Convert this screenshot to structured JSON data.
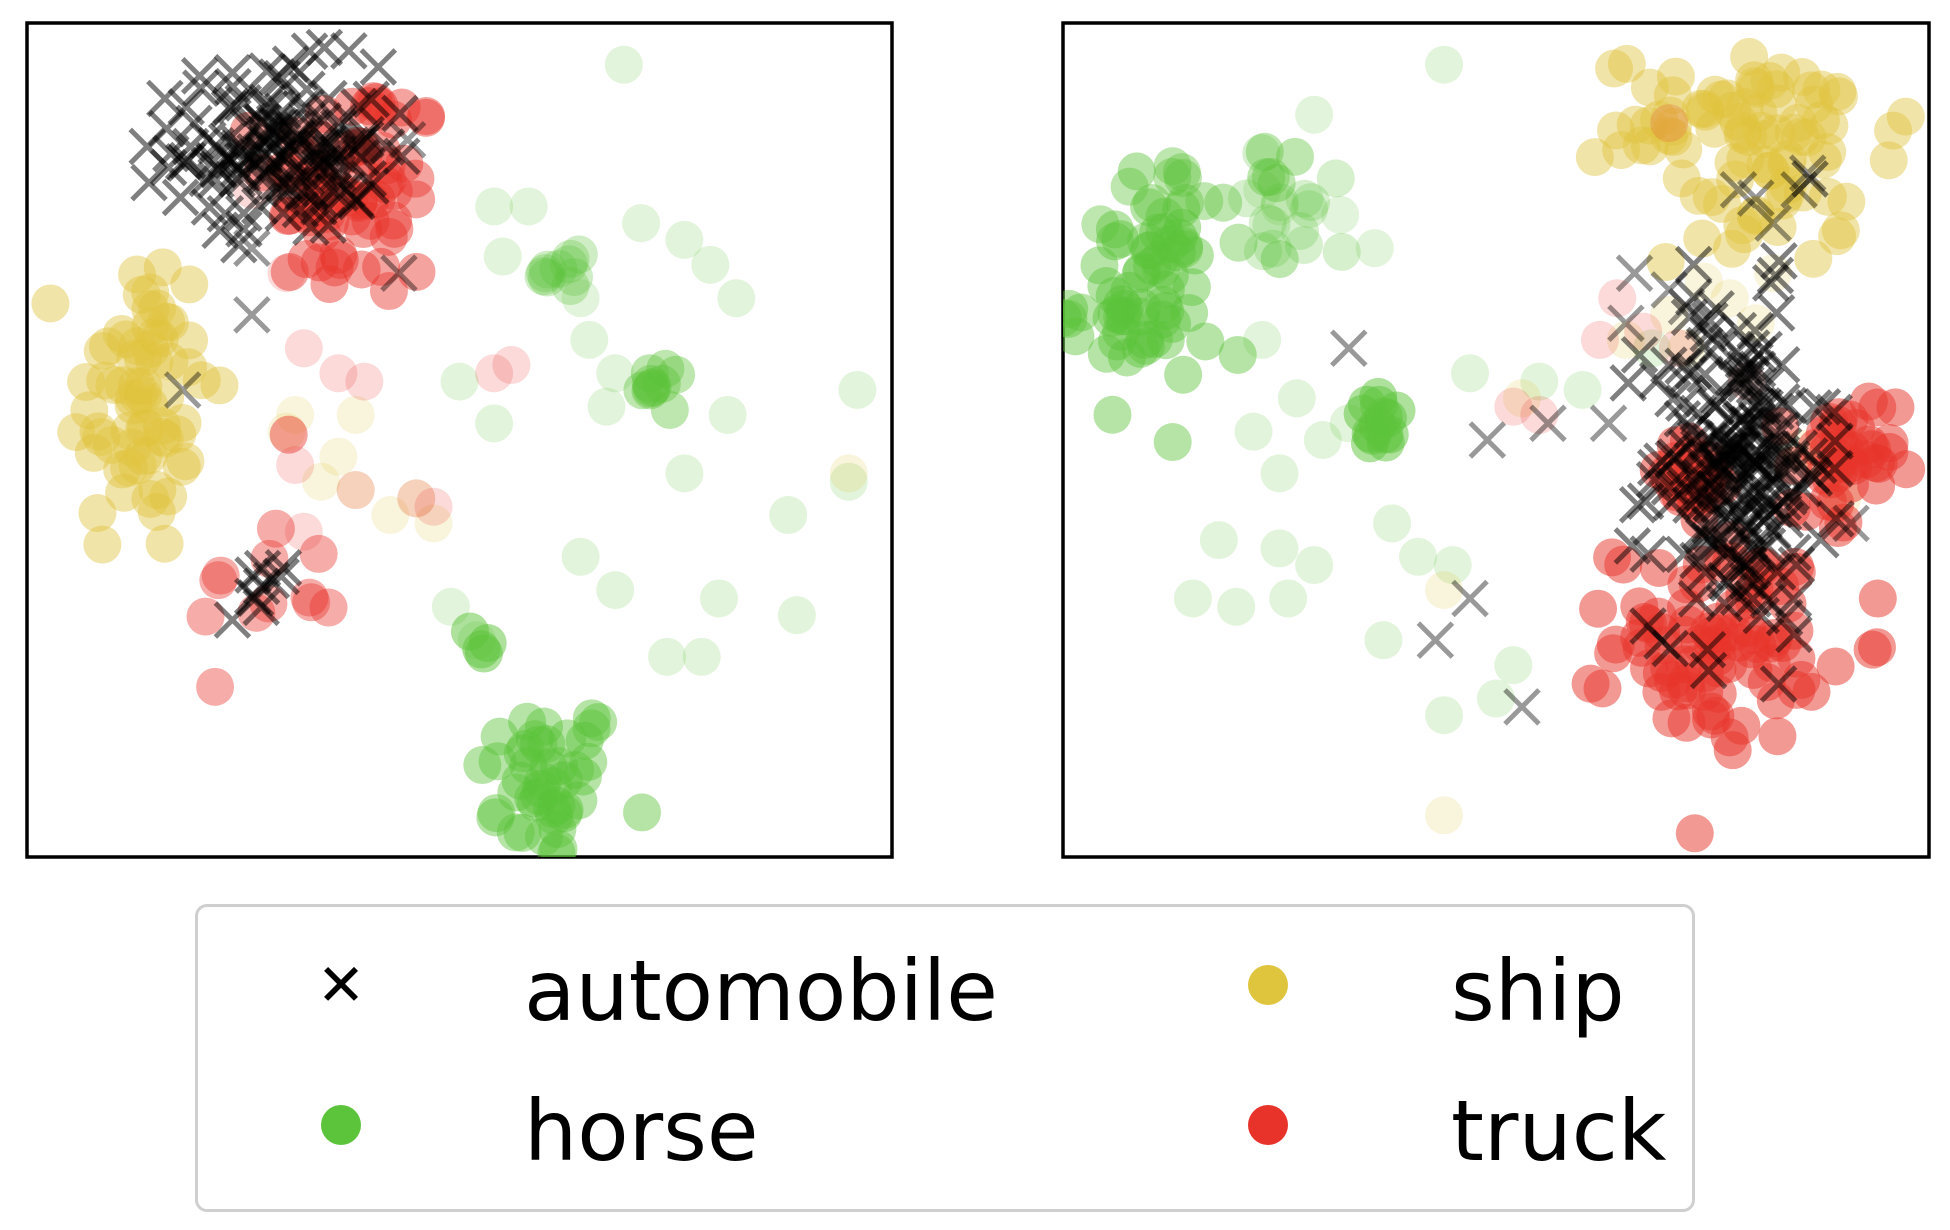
{
  "legend": {
    "automobile": {
      "label": "automobile",
      "marker": "x-marker-icon",
      "color": "#000000"
    },
    "horse": {
      "label": "horse",
      "marker": "dot-marker-icon",
      "color": "#5cc43a"
    },
    "ship": {
      "label": "ship",
      "marker": "dot-marker-icon",
      "color": "#dfc43e"
    },
    "truck": {
      "label": "truck",
      "marker": "dot-marker-icon",
      "color": "#e8332a"
    }
  },
  "chart_data": [
    {
      "type": "scatter",
      "title": "",
      "xlabel": "",
      "ylabel": "",
      "xlim": [
        0,
        100
      ],
      "ylim": [
        0,
        100
      ],
      "grid": false,
      "legend_position": "bottom",
      "series": [
        {
          "name": "automobile",
          "marker": "x",
          "color": "#000000",
          "clusters": [
            {
              "cx": 29,
              "cy": 85,
              "sx": 6,
              "sy": 5,
              "n": 140,
              "alpha": 0.5
            },
            {
              "cx": 27,
              "cy": 32,
              "sx": 2,
              "sy": 2,
              "n": 10,
              "alpha": 0.5
            }
          ],
          "points": [
            [
              44,
              86
            ],
            [
              26,
              73
            ],
            [
              18,
              56
            ],
            [
              43,
              70
            ],
            [
              26,
              65
            ]
          ]
        },
        {
          "name": "horse",
          "marker": "o",
          "color": "#5cc43a",
          "clusters": [
            {
              "cx": 60,
              "cy": 9,
              "sx": 4,
              "sy": 5,
              "n": 45,
              "alpha": 0.45
            },
            {
              "cx": 74,
              "cy": 56,
              "sx": 1.5,
              "sy": 1.5,
              "n": 10,
              "alpha": 0.4
            },
            {
              "cx": 62,
              "cy": 71,
              "sx": 3,
              "sy": 1.5,
              "n": 10,
              "alpha": 0.3
            },
            {
              "cx": 52,
              "cy": 25,
              "sx": 1,
              "sy": 1.5,
              "n": 4,
              "alpha": 0.5
            }
          ],
          "points": [
            [
              69,
              95
            ],
            [
              54,
              78
            ],
            [
              58,
              78
            ],
            [
              71,
              76
            ],
            [
              76,
              74
            ],
            [
              79,
              71
            ],
            [
              82,
              67
            ],
            [
              55,
              72
            ],
            [
              64,
              67
            ],
            [
              65,
              62
            ],
            [
              68,
              58
            ],
            [
              81,
              53
            ],
            [
              50,
              57
            ],
            [
              54,
              52
            ],
            [
              67,
              54
            ],
            [
              76,
              46
            ],
            [
              96,
              56
            ],
            [
              95,
              45
            ],
            [
              88,
              41
            ],
            [
              64,
              36
            ],
            [
              68,
              32
            ],
            [
              80,
              31
            ],
            [
              89,
              29
            ],
            [
              74,
              24
            ],
            [
              78,
              24
            ],
            [
              49,
              30
            ],
            [
              52,
              26
            ]
          ]
        },
        {
          "name": "ship",
          "marker": "o",
          "color": "#dfc43e",
          "clusters": [
            {
              "cx": 13,
              "cy": 55,
              "sx": 4,
              "sy": 10,
              "n": 70,
              "alpha": 0.45
            }
          ],
          "points": [
            [
              38,
              53
            ],
            [
              36,
              48
            ],
            [
              45,
              43
            ],
            [
              47,
              40
            ],
            [
              42,
              41
            ],
            [
              31,
              53
            ],
            [
              30,
              51
            ],
            [
              95,
              46
            ],
            [
              34,
              45
            ],
            [
              38,
              44
            ]
          ]
        },
        {
          "name": "truck",
          "marker": "o",
          "color": "#e8332a",
          "clusters": [
            {
              "cx": 38,
              "cy": 80,
              "sx": 5,
              "sy": 7,
              "n": 70,
              "alpha": 0.45
            },
            {
              "cx": 28,
              "cy": 32,
              "sx": 4,
              "sy": 5,
              "n": 12,
              "alpha": 0.4
            }
          ],
          "points": [
            [
              26,
              80
            ],
            [
              30,
              70
            ],
            [
              32,
              61
            ],
            [
              36,
              58
            ],
            [
              39,
              57
            ],
            [
              54,
              58
            ],
            [
              56,
              59
            ],
            [
              31,
              47
            ],
            [
              38,
              44
            ],
            [
              45,
              43
            ],
            [
              47,
              42
            ],
            [
              32,
              39
            ]
          ]
        }
      ]
    },
    {
      "type": "scatter",
      "title": "",
      "xlabel": "",
      "ylabel": "",
      "xlim": [
        0,
        100
      ],
      "ylim": [
        0,
        100
      ],
      "grid": false,
      "legend_position": "bottom",
      "series": [
        {
          "name": "automobile",
          "marker": "x",
          "color": "#000000",
          "clusters": [
            {
              "cx": 78,
              "cy": 47,
              "sx": 5,
              "sy": 10,
              "n": 210,
              "alpha": 0.5
            }
          ],
          "points": [
            [
              33,
              61
            ],
            [
              49,
              50
            ],
            [
              56,
              52
            ],
            [
              63,
              52
            ],
            [
              65,
              64
            ],
            [
              72,
              66
            ],
            [
              74,
              61
            ],
            [
              66,
              70
            ],
            [
              70,
              68
            ],
            [
              80,
              79
            ],
            [
              78,
              80
            ],
            [
              85,
              80
            ],
            [
              86,
              82
            ],
            [
              82,
              76
            ],
            [
              47,
              31
            ],
            [
              43,
              26
            ],
            [
              53,
              18
            ],
            [
              91,
              40
            ]
          ]
        },
        {
          "name": "horse",
          "marker": "o",
          "color": "#5cc43a",
          "clusters": [
            {
              "cx": 9,
              "cy": 67,
              "sx": 4,
              "sy": 6,
              "n": 60,
              "alpha": 0.45
            },
            {
              "cx": 16,
              "cy": 78,
              "sx": 5,
              "sy": 3,
              "n": 20,
              "alpha": 0.4
            },
            {
              "cx": 37,
              "cy": 52,
              "sx": 1.5,
              "sy": 1.5,
              "n": 14,
              "alpha": 0.5
            },
            {
              "cx": 27,
              "cy": 77,
              "sx": 6,
              "sy": 4,
              "n": 14,
              "alpha": 0.25
            }
          ],
          "points": [
            [
              44,
              95
            ],
            [
              29,
              89
            ],
            [
              23,
              80
            ],
            [
              25,
              78
            ],
            [
              32,
              77
            ],
            [
              36,
              73
            ],
            [
              23,
              62
            ],
            [
              27,
              55
            ],
            [
              30,
              50
            ],
            [
              22,
              51
            ],
            [
              25,
              46
            ],
            [
              18,
              38
            ],
            [
              25,
              37
            ],
            [
              29,
              35
            ],
            [
              38,
              40
            ],
            [
              41,
              36
            ],
            [
              45,
              35
            ],
            [
              15,
              31
            ],
            [
              20,
              30
            ],
            [
              26,
              31
            ],
            [
              37,
              26
            ],
            [
              52,
              23
            ],
            [
              50,
              19
            ],
            [
              44,
              17
            ],
            [
              33,
              52
            ],
            [
              47,
              58
            ],
            [
              55,
              57
            ],
            [
              60,
              56
            ],
            [
              68,
              61
            ]
          ]
        },
        {
          "name": "ship",
          "marker": "o",
          "color": "#dfc43e",
          "clusters": [
            {
              "cx": 80,
              "cy": 88,
              "sx": 9,
              "sy": 4,
              "n": 70,
              "alpha": 0.45
            },
            {
              "cx": 80,
              "cy": 77,
              "sx": 5,
              "sy": 3,
              "n": 20,
              "alpha": 0.45
            }
          ],
          "points": [
            [
              74,
              69
            ],
            [
              77,
              67
            ],
            [
              70,
              65
            ],
            [
              80,
              64
            ],
            [
              72,
              61
            ],
            [
              65,
              62
            ],
            [
              44,
              5
            ],
            [
              44,
              32
            ],
            [
              53,
              55
            ],
            [
              85,
              49
            ],
            [
              88,
              47
            ],
            [
              90,
              43
            ],
            [
              82,
              70
            ]
          ]
        },
        {
          "name": "truck",
          "marker": "o",
          "color": "#e8332a",
          "clusters": [
            {
              "cx": 76,
              "cy": 26,
              "sx": 6,
              "sy": 6,
              "n": 90,
              "alpha": 0.5
            },
            {
              "cx": 90,
              "cy": 46,
              "sx": 3,
              "sy": 5,
              "n": 40,
              "alpha": 0.5
            },
            {
              "cx": 72,
              "cy": 45,
              "sx": 3,
              "sy": 3,
              "n": 20,
              "alpha": 0.5
            }
          ],
          "points": [
            [
              70,
              88
            ],
            [
              62,
              62
            ],
            [
              67,
              63
            ],
            [
              71,
              61
            ],
            [
              55,
              53
            ],
            [
              52,
              54
            ],
            [
              64,
              67
            ],
            [
              79,
              57
            ]
          ]
        }
      ]
    }
  ]
}
